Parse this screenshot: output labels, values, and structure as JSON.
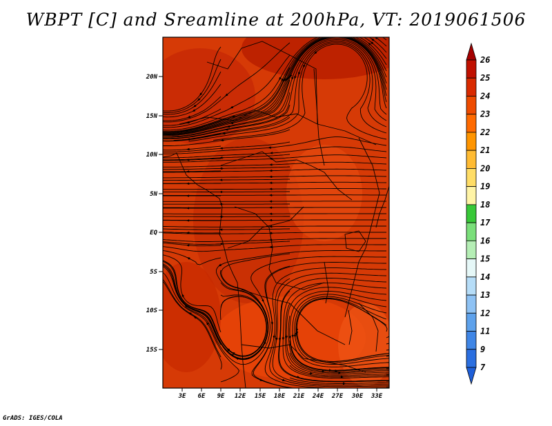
{
  "title": "WBPT [C] and Sreamline at 200hPa, VT: 2019061506",
  "footer": "GrADS: IGES/COLA",
  "map": {
    "field": "WBPT",
    "field_unit": "C",
    "level": "200hPa",
    "valid_time": "2019061506",
    "lat_ticks": [
      "20N",
      "15N",
      "10N",
      "5N",
      "EQ",
      "5S",
      "10S",
      "15S"
    ],
    "lon_ticks": [
      "3E",
      "6E",
      "9E",
      "12E",
      "15E",
      "18E",
      "21E",
      "24E",
      "27E",
      "30E",
      "33E"
    ],
    "background_fill": "#d63a06"
  },
  "colorbar": {
    "labels": [
      "26",
      "25",
      "24",
      "23",
      "22",
      "21",
      "20",
      "19",
      "18",
      "17",
      "16",
      "15",
      "14",
      "13",
      "12",
      "11",
      "9",
      "7"
    ],
    "colors": [
      "#a50000",
      "#c01000",
      "#d92a00",
      "#ee4b00",
      "#ff6a00",
      "#ff9500",
      "#ffbb33",
      "#ffdd66",
      "#fff4a6",
      "#38c838",
      "#7adf7a",
      "#b5eeb5",
      "#e6f8f8",
      "#b6ddf8",
      "#8ec2f4",
      "#5ea2ec",
      "#3f86e6",
      "#2b6fe0",
      "#1e5fd8"
    ]
  }
}
